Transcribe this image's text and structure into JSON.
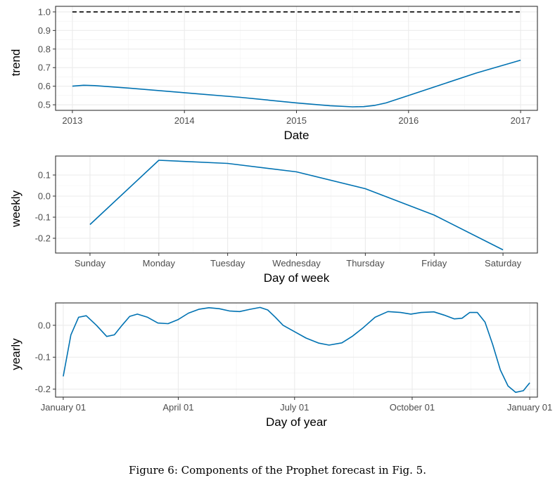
{
  "chart_data": [
    {
      "type": "line",
      "ylabel": "trend",
      "xlabel": "Date",
      "x_ticks": [
        2013,
        2014,
        2015,
        2016,
        2017
      ],
      "y_ticks": [
        "0.5",
        "0.6",
        "0.7",
        "0.8",
        "0.9",
        "1.0"
      ],
      "xlim": [
        2012.85,
        2017.15
      ],
      "ylim": [
        0.47,
        1.03
      ],
      "grid": true,
      "series": [
        {
          "color": "#0072B2",
          "x": [
            2013.0,
            2013.1,
            2013.2,
            2013.5,
            2014.0,
            2014.5,
            2015.0,
            2015.3,
            2015.5,
            2015.6,
            2015.7,
            2015.8,
            2016.0,
            2016.3,
            2016.6,
            2016.8,
            2017.0
          ],
          "y": [
            0.6,
            0.605,
            0.603,
            0.59,
            0.565,
            0.54,
            0.51,
            0.495,
            0.489,
            0.49,
            0.497,
            0.51,
            0.55,
            0.61,
            0.67,
            0.705,
            0.74
          ]
        },
        {
          "style": "dashed",
          "color": "#000000",
          "x": [
            2013.0,
            2017.0
          ],
          "y": [
            1.0,
            1.0
          ]
        }
      ]
    },
    {
      "type": "line",
      "ylabel": "weekly",
      "xlabel": "Day of week",
      "categories": [
        "Sunday",
        "Monday",
        "Tuesday",
        "Wednesday",
        "Thursday",
        "Friday",
        "Saturday"
      ],
      "y_ticks": [
        "-0.2",
        "-0.1",
        "0.0",
        "0.1"
      ],
      "ylim": [
        -0.27,
        0.19
      ],
      "grid": true,
      "series": [
        {
          "color": "#0072B2",
          "values": [
            -0.135,
            0.17,
            0.155,
            0.115,
            0.035,
            -0.09,
            -0.255
          ]
        }
      ]
    },
    {
      "type": "line",
      "ylabel": "yearly",
      "xlabel": "Day of year",
      "x_ticks": [
        "January 01",
        "April 01",
        "July 01",
        "October 01",
        "January 01"
      ],
      "x_tick_days": [
        0,
        90,
        181,
        273,
        365
      ],
      "y_ticks": [
        "-0.2",
        "-0.1",
        "0.0"
      ],
      "xlim": [
        -6,
        371
      ],
      "ylim": [
        -0.225,
        0.07
      ],
      "grid": true,
      "series": [
        {
          "color": "#0072B2",
          "x": [
            0,
            6,
            12,
            18,
            26,
            34,
            40,
            46,
            52,
            58,
            66,
            74,
            82,
            90,
            98,
            106,
            114,
            122,
            130,
            138,
            146,
            154,
            160,
            166,
            172,
            181,
            190,
            200,
            208,
            218,
            226,
            234,
            244,
            254,
            264,
            272,
            280,
            290,
            298,
            306,
            312,
            318,
            324,
            330,
            336,
            342,
            348,
            354,
            360,
            365
          ],
          "y": [
            -0.16,
            -0.03,
            0.025,
            0.03,
            0.0,
            -0.035,
            -0.03,
            0.0,
            0.028,
            0.035,
            0.025,
            0.007,
            0.005,
            0.018,
            0.038,
            0.05,
            0.055,
            0.052,
            0.045,
            0.043,
            0.05,
            0.056,
            0.048,
            0.025,
            0.0,
            -0.02,
            -0.04,
            -0.056,
            -0.062,
            -0.055,
            -0.035,
            -0.01,
            0.025,
            0.043,
            0.04,
            0.035,
            0.04,
            0.042,
            0.032,
            0.02,
            0.022,
            0.04,
            0.04,
            0.01,
            -0.06,
            -0.14,
            -0.19,
            -0.21,
            -0.205,
            -0.18
          ]
        }
      ]
    }
  ],
  "caption": "Figure 6: Components of the Prophet forecast in Fig. 5."
}
